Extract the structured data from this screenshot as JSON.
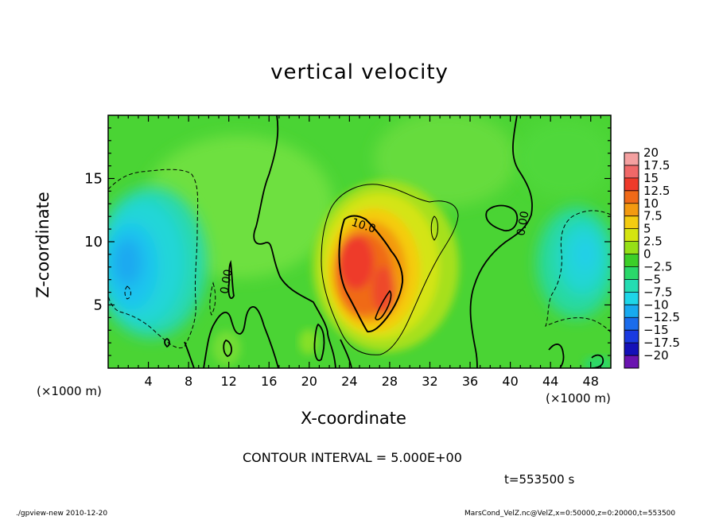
{
  "chart_data": {
    "type": "heatmap",
    "title": "vertical velocity",
    "xlabel": "X-coordinate",
    "ylabel": "Z-coordinate",
    "x_unit_left": "(×1000 m)",
    "x_unit_right": "(×1000 m)",
    "xlim": [
      0,
      50
    ],
    "ylim": [
      0,
      20
    ],
    "x_ticks": [
      4,
      8,
      12,
      16,
      20,
      24,
      28,
      32,
      36,
      40,
      44,
      48
    ],
    "y_ticks": [
      5,
      10,
      15
    ],
    "colorbar": {
      "levels": [
        "20",
        "17.5",
        "15",
        "12.5",
        "10",
        "7.5",
        "5",
        "2.5",
        "0",
        "−2.5",
        "−5",
        "−7.5",
        "−10",
        "−12.5",
        "−15",
        "−17.5",
        "−20"
      ],
      "colors": [
        "#f4a0a0",
        "#f06868",
        "#ee3a2a",
        "#f06a18",
        "#f39a10",
        "#f4cc10",
        "#d4e410",
        "#96e016",
        "#3ccf28",
        "#2ad86a",
        "#24dcb2",
        "#1ed6e8",
        "#18aaf0",
        "#1a6cec",
        "#1a3ae0",
        "#1410b8",
        "#6a14b0"
      ]
    },
    "contour_labels": [
      {
        "text": "10.0",
        "x": 25.3,
        "z": 11.0
      },
      {
        "text": "0.00",
        "x": 12.1,
        "z": 6.8
      },
      {
        "text": "0.00",
        "x": 41.6,
        "z": 11.4
      }
    ],
    "contour_interval": "CONTOUR INTERVAL = 5.000E+00",
    "time": "t=553500 s"
  },
  "footer": {
    "left": "./gpview-new  2010-12-20",
    "right": "MarsCond_VelZ.nc@VelZ,x=0:50000,z=0:20000,t=553500"
  }
}
